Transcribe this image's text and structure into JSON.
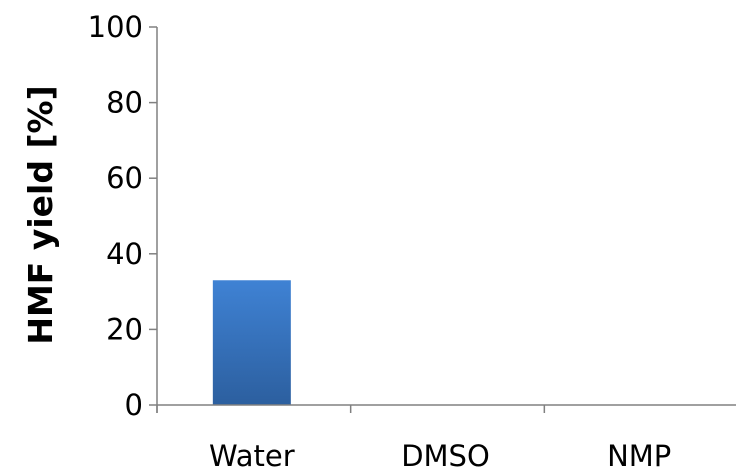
{
  "chart_data": {
    "type": "bar",
    "title": "",
    "xlabel": "",
    "ylabel": "HMF yield [%]",
    "categories": [
      "Water",
      "DMSO",
      "NMP"
    ],
    "values": [
      33,
      0,
      0
    ],
    "ylim": [
      0,
      100
    ],
    "yticks": [
      "0",
      "20",
      "40",
      "60",
      "80",
      "100"
    ],
    "grid": false,
    "legend": "none",
    "bar_color_top": "#3f82d4",
    "bar_color_bottom": "#2c5f9f",
    "axis_color": "#808080"
  }
}
